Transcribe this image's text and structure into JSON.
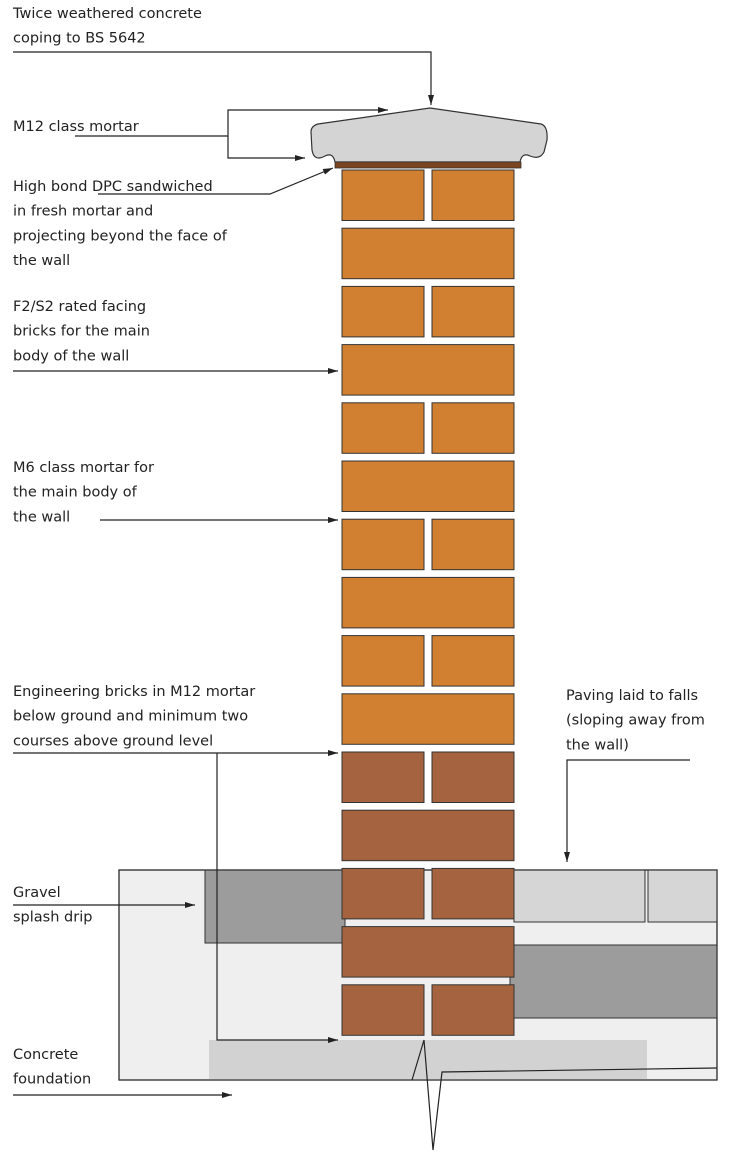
{
  "labels": [
    {
      "lines": [
        "Twice weathered concrete",
        "coping to BS 5642"
      ]
    },
    {
      "lines": [
        "M12 class mortar"
      ]
    },
    {
      "lines": [
        "High bond DPC sandwiched",
        "in fresh mortar and",
        "projecting beyond the face of",
        "the wall"
      ]
    },
    {
      "lines": [
        "F2/S2 rated facing",
        "bricks for the main",
        "body of the wall"
      ]
    },
    {
      "lines": [
        "M6 class mortar for",
        "the main body of",
        "the wall"
      ]
    },
    {
      "lines": [
        "Engineering bricks in M12 mortar",
        "below ground and minimum two",
        "courses above ground level"
      ]
    },
    {
      "lines": [
        "Paving laid to falls",
        "(sloping away from",
        "the wall)"
      ]
    },
    {
      "lines": [
        "Gravel",
        "splash drip"
      ]
    },
    {
      "lines": [
        "Concrete",
        "foundation"
      ]
    }
  ]
}
